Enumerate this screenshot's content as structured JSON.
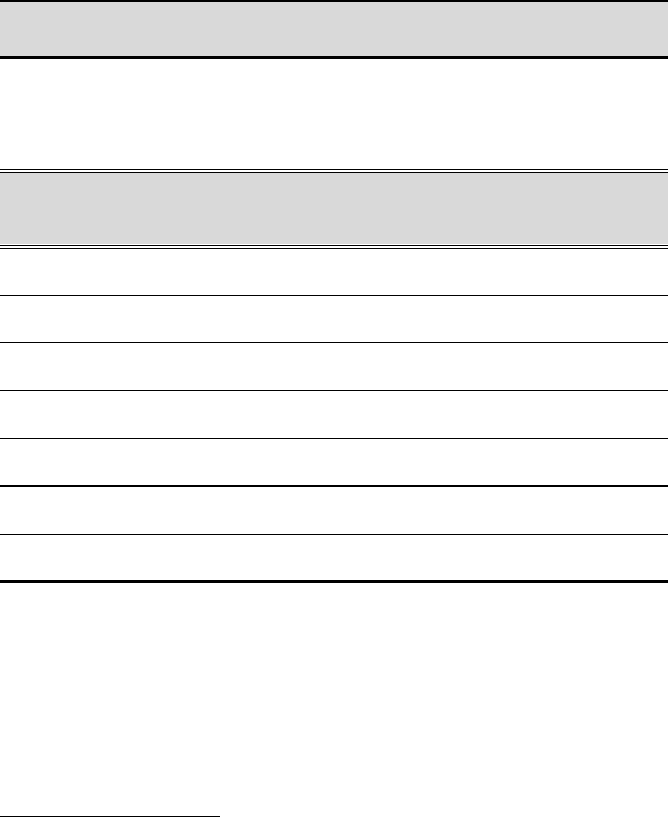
{
  "colors": {
    "header_shading": "#d9d9d9",
    "rule": "#000000",
    "background": "#ffffff"
  }
}
